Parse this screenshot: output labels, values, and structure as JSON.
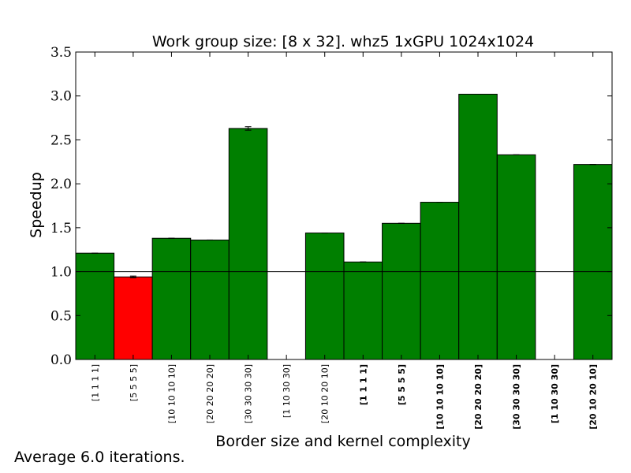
{
  "chart_data": {
    "type": "bar",
    "title": "Work group size: [8 x 32]. whz5 1xGPU 1024x1024",
    "xlabel": "Border size and kernel complexity",
    "ylabel": "Speedup",
    "ylim": [
      0,
      3.5
    ],
    "yticks": [
      "0.0",
      "0.5",
      "1.0",
      "1.5",
      "2.0",
      "2.5",
      "3.0",
      "3.5"
    ],
    "reference_line": 1.0,
    "categories": [
      {
        "label": "[1 1 1 1]",
        "bold": false
      },
      {
        "label": "[5 5 5 5]",
        "bold": false
      },
      {
        "label": "[10 10 10 10]",
        "bold": false
      },
      {
        "label": "[20 20 20 20]",
        "bold": false
      },
      {
        "label": "[30 30 30 30]",
        "bold": false
      },
      {
        "label": "[1 10 30 30]",
        "bold": false
      },
      {
        "label": "[20 10 20 10]",
        "bold": false
      },
      {
        "label": "[1 1 1 1]",
        "bold": true
      },
      {
        "label": "[5 5 5 5]",
        "bold": true
      },
      {
        "label": "[10 10 10 10]",
        "bold": true
      },
      {
        "label": "[20 20 20 20]",
        "bold": true
      },
      {
        "label": "[30 30 30 30]",
        "bold": true
      },
      {
        "label": "[1 10 30 30]",
        "bold": true
      },
      {
        "label": "[20 10 20 10]",
        "bold": true
      }
    ],
    "values": [
      1.21,
      0.94,
      1.38,
      1.36,
      2.63,
      0.0,
      1.44,
      1.11,
      1.55,
      1.79,
      3.02,
      2.33,
      0.0,
      2.22
    ],
    "errors": [
      0.0,
      0.01,
      0.0,
      0.0,
      0.02,
      0.0,
      0.0,
      0.0,
      0.0,
      0.0,
      0.0,
      0.0,
      0.0,
      0.0
    ],
    "colors": {
      "above": "#007f00",
      "below": "#ff0000",
      "edge": "#000000"
    },
    "grid": false
  },
  "footnote": "Average 6.0 iterations."
}
